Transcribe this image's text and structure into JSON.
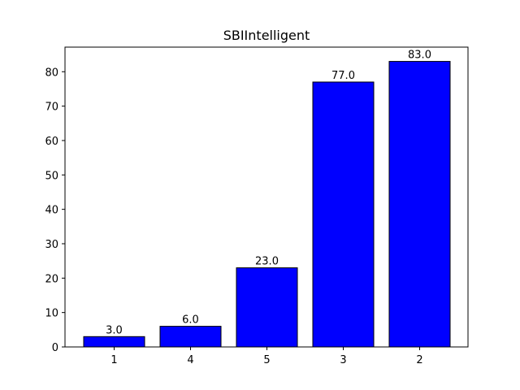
{
  "chart_data": {
    "type": "bar",
    "title": "SBIIntelligent",
    "xlabel": "",
    "ylabel": "",
    "categories": [
      "1",
      "4",
      "5",
      "3",
      "2"
    ],
    "values": [
      3.0,
      6.0,
      23.0,
      77.0,
      83.0
    ],
    "data_labels": [
      "3.0",
      "6.0",
      "23.0",
      "77.0",
      "83.0"
    ],
    "ylim": [
      0,
      87.15
    ],
    "yticks": [
      0,
      10,
      20,
      30,
      40,
      50,
      60,
      70,
      80
    ],
    "grid": false,
    "legend": "none",
    "bar_color": "#0000ff",
    "bar_edge_color": "#000000"
  }
}
